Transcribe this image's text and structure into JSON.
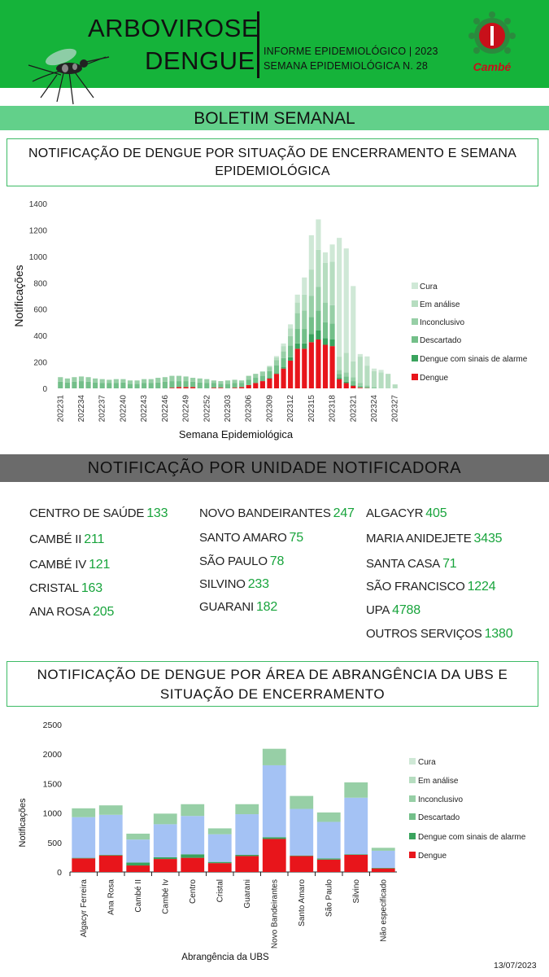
{
  "header": {
    "title_line1": "ARBOVIROSE",
    "title_line2": "DENGUE",
    "info_line1": "INFORME EPIDEMIOLÓGICO | 2023",
    "info_line2": "SEMANA EPIDEMIOLÓGICA  N. 28",
    "logo_text": "Cambé",
    "icons": [
      "mosquito-icon",
      "cambe-logo"
    ]
  },
  "banner": "BOLETIM SEMANAL",
  "section1_title": "NOTIFICAÇÃO DE DENGUE POR SITUAÇÃO DE ENCERRAMENTO E SEMANA EPIDEMIOLÓGICA",
  "section2_title": "NOTIFICAÇÃO POR UNIDADE NOTIFICADORA",
  "section3_title": "NOTIFICAÇÃO DE DENGUE POR ÁREA DE ABRANGÊNCIA DA UBS E SITUAÇÃO DE ENCERRAMENTO",
  "units": [
    {
      "name": "CENTRO  DE SAÚDE",
      "count": "133"
    },
    {
      "name": "CAMBÉ II",
      "count": "211"
    },
    {
      "name": "CAMBÉ IV",
      "count": "121"
    },
    {
      "name": "CRISTAL",
      "count": "163"
    },
    {
      "name": "ANA ROSA",
      "count": "205"
    },
    {
      "name": "NOVO BANDEIRANTES",
      "count": "247"
    },
    {
      "name": "SANTO AMARO",
      "count": "75"
    },
    {
      "name": "SÃO PAULO",
      "count": "78"
    },
    {
      "name": "SILVINO",
      "count": "233"
    },
    {
      "name": "GUARANI",
      "count": "182"
    },
    {
      "name": "ALGACYR",
      "count": "405"
    },
    {
      "name": "MARIA ANIDEJETE",
      "count": "3435"
    },
    {
      "name": "SANTA CASA",
      "count": "71"
    },
    {
      "name": "SÃO FRANCISCO",
      "count": "1224"
    },
    {
      "name": "UPA",
      "count": "4788"
    },
    {
      "name": "OUTROS SERVIÇOS",
      "count": "1380"
    }
  ],
  "date": "13/07/2023",
  "colors": {
    "header_green": "#15b33a",
    "banner_green": "#62d08a",
    "cura": "#cfe8d6",
    "em_analise": "#b6ddc0",
    "inconclusivo": "#97cfa6",
    "descartado": "#73bf89",
    "sinais_alarme": "#3aa35d",
    "dengue": "#e8151b",
    "descartado_chart2": "#a4c2f4"
  },
  "chart_data": [
    {
      "type": "bar",
      "stacked": true,
      "xlabel": "Semana Epidemiológica",
      "ylabel": "Notificações",
      "ylim": [
        0,
        1400
      ],
      "yticks": [
        0,
        200,
        400,
        600,
        800,
        1000,
        1200,
        1400
      ],
      "legend_position": "right",
      "tick_labels": [
        "202231",
        "202234",
        "202237",
        "202240",
        "202243",
        "202246",
        "202249",
        "202252",
        "202303",
        "202306",
        "202309",
        "202312",
        "202315",
        "202318",
        "202321",
        "202324",
        "202327"
      ],
      "categories": [
        "202231",
        "202232",
        "202233",
        "202234",
        "202235",
        "202236",
        "202237",
        "202238",
        "202239",
        "202240",
        "202241",
        "202242",
        "202243",
        "202244",
        "202245",
        "202246",
        "202247",
        "202248",
        "202249",
        "202250",
        "202251",
        "202252",
        "202301",
        "202302",
        "202303",
        "202304",
        "202305",
        "202306",
        "202307",
        "202308",
        "202309",
        "202310",
        "202311",
        "202312",
        "202313",
        "202314",
        "202315",
        "202316",
        "202317",
        "202318",
        "202319",
        "202320",
        "202321",
        "202322",
        "202323",
        "202324",
        "202325",
        "202326",
        "202327"
      ],
      "series": [
        {
          "name": "Dengue",
          "values": [
            0,
            0,
            0,
            0,
            0,
            0,
            0,
            0,
            0,
            0,
            0,
            0,
            0,
            0,
            0,
            0,
            5,
            10,
            10,
            10,
            0,
            0,
            5,
            5,
            0,
            5,
            10,
            25,
            40,
            55,
            75,
            110,
            150,
            210,
            300,
            300,
            350,
            370,
            330,
            320,
            70,
            40,
            20,
            5,
            2,
            0,
            0,
            0,
            0
          ]
        },
        {
          "name": "Dengue com sinais de alarme",
          "values": [
            0,
            0,
            0,
            0,
            0,
            0,
            0,
            0,
            0,
            0,
            0,
            0,
            0,
            0,
            0,
            0,
            0,
            0,
            0,
            0,
            0,
            0,
            0,
            0,
            0,
            0,
            0,
            0,
            0,
            0,
            5,
            5,
            10,
            25,
            40,
            40,
            60,
            70,
            50,
            50,
            10,
            10,
            5,
            0,
            0,
            0,
            0,
            0,
            0
          ]
        },
        {
          "name": "Descartado",
          "values": [
            50,
            45,
            50,
            55,
            50,
            45,
            40,
            40,
            40,
            45,
            35,
            35,
            40,
            40,
            45,
            50,
            50,
            45,
            45,
            40,
            45,
            40,
            35,
            30,
            35,
            35,
            30,
            40,
            40,
            40,
            50,
            60,
            70,
            90,
            110,
            110,
            130,
            150,
            120,
            120,
            30,
            40,
            30,
            15,
            10,
            5,
            0,
            0,
            0
          ]
        },
        {
          "name": "Inconclusivo",
          "values": [
            35,
            30,
            35,
            35,
            35,
            30,
            30,
            25,
            30,
            25,
            25,
            25,
            30,
            30,
            35,
            35,
            40,
            40,
            35,
            30,
            30,
            30,
            20,
            20,
            25,
            25,
            20,
            30,
            30,
            30,
            30,
            40,
            50,
            70,
            120,
            140,
            160,
            180,
            150,
            140,
            30,
            30,
            30,
            20,
            10,
            5,
            0,
            0,
            0
          ]
        },
        {
          "name": "Em análise",
          "values": [
            0,
            0,
            0,
            0,
            0,
            0,
            0,
            0,
            0,
            0,
            0,
            0,
            0,
            0,
            0,
            0,
            0,
            0,
            0,
            0,
            0,
            0,
            0,
            0,
            0,
            0,
            0,
            0,
            0,
            5,
            10,
            20,
            40,
            60,
            80,
            120,
            200,
            280,
            300,
            330,
            100,
            150,
            120,
            200,
            150,
            120,
            120,
            110,
            30
          ]
        },
        {
          "name": "Cura",
          "values": [
            0,
            0,
            0,
            0,
            0,
            0,
            0,
            0,
            0,
            0,
            0,
            0,
            0,
            0,
            0,
            0,
            0,
            0,
            0,
            0,
            0,
            0,
            0,
            0,
            0,
            0,
            0,
            0,
            0,
            0,
            0,
            10,
            20,
            30,
            60,
            130,
            260,
            230,
            80,
            130,
            900,
            790,
            570,
            20,
            70,
            20,
            20,
            0,
            0
          ]
        }
      ]
    },
    {
      "type": "bar",
      "stacked": true,
      "xlabel": "Abrangência da UBS",
      "ylabel": "Notificações",
      "ylim": [
        0,
        2500
      ],
      "yticks": [
        0,
        500,
        1000,
        1500,
        2000,
        2500
      ],
      "legend_position": "right",
      "categories": [
        "Algacyr Ferreira",
        "Ana Rosa",
        "Cambé II",
        "Cambé Iv",
        "Centro",
        "Cristal",
        "Guarani",
        "Novo Bandeirantes",
        "Santo Amaro",
        "São Paulo",
        "Silvino",
        "Não especificado"
      ],
      "series": [
        {
          "name": "Dengue",
          "values": [
            230,
            280,
            110,
            220,
            240,
            150,
            270,
            560,
            270,
            210,
            290,
            60
          ]
        },
        {
          "name": "Dengue com sinais de alarme",
          "values": [
            10,
            10,
            50,
            30,
            60,
            20,
            20,
            30,
            10,
            20,
            10,
            10
          ]
        },
        {
          "name": "Descartado",
          "values": [
            690,
            680,
            390,
            560,
            650,
            470,
            690,
            1220,
            790,
            620,
            960,
            290
          ]
        },
        {
          "name": "Inconclusivo",
          "values": [
            150,
            160,
            100,
            180,
            200,
            100,
            170,
            280,
            220,
            160,
            260,
            50
          ]
        },
        {
          "name": "Em análise",
          "values": [
            0,
            0,
            0,
            0,
            0,
            0,
            0,
            0,
            0,
            0,
            0,
            0
          ]
        },
        {
          "name": "Cura",
          "values": [
            0,
            0,
            0,
            0,
            0,
            0,
            0,
            0,
            0,
            0,
            0,
            0
          ]
        }
      ]
    }
  ]
}
